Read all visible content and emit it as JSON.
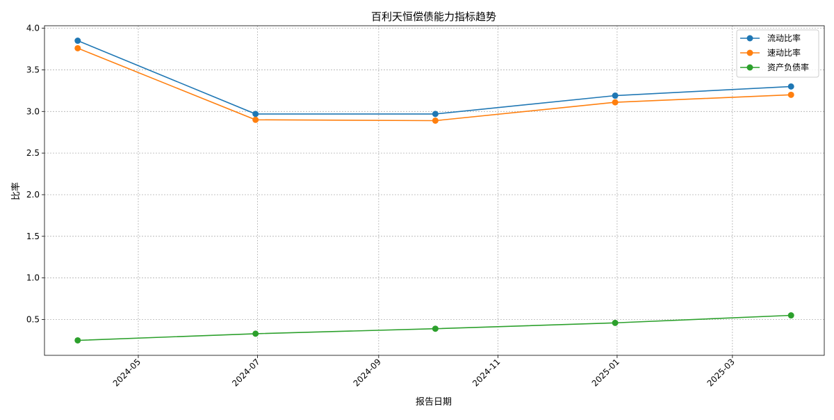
{
  "chart_data": {
    "type": "line",
    "title": "百利天恒偿债能力指标趋势",
    "xlabel": "报告日期",
    "ylabel": "比率",
    "x": [
      "2024-03-31",
      "2024-06-30",
      "2024-09-30",
      "2024-12-31",
      "2025-03-31"
    ],
    "xlim": [
      "2024-03-14",
      "2025-04-17"
    ],
    "ylim": [
      0.07,
      4.03
    ],
    "x_ticks": [
      "2024-05",
      "2024-07",
      "2024-09",
      "2024-11",
      "2025-01",
      "2025-03"
    ],
    "y_ticks": [
      0.5,
      1.0,
      1.5,
      2.0,
      2.5,
      3.0,
      3.5,
      4.0
    ],
    "grid": true,
    "legend_position": "top-right",
    "series": [
      {
        "name": "流动比率",
        "color": "#1f77b4",
        "values": [
          3.85,
          2.97,
          2.97,
          3.19,
          3.3
        ]
      },
      {
        "name": "速动比率",
        "color": "#ff7f0e",
        "values": [
          3.76,
          2.9,
          2.89,
          3.11,
          3.2
        ]
      },
      {
        "name": "资产负债率",
        "color": "#2ca02c",
        "values": [
          0.25,
          0.33,
          0.39,
          0.46,
          0.55
        ]
      }
    ]
  }
}
